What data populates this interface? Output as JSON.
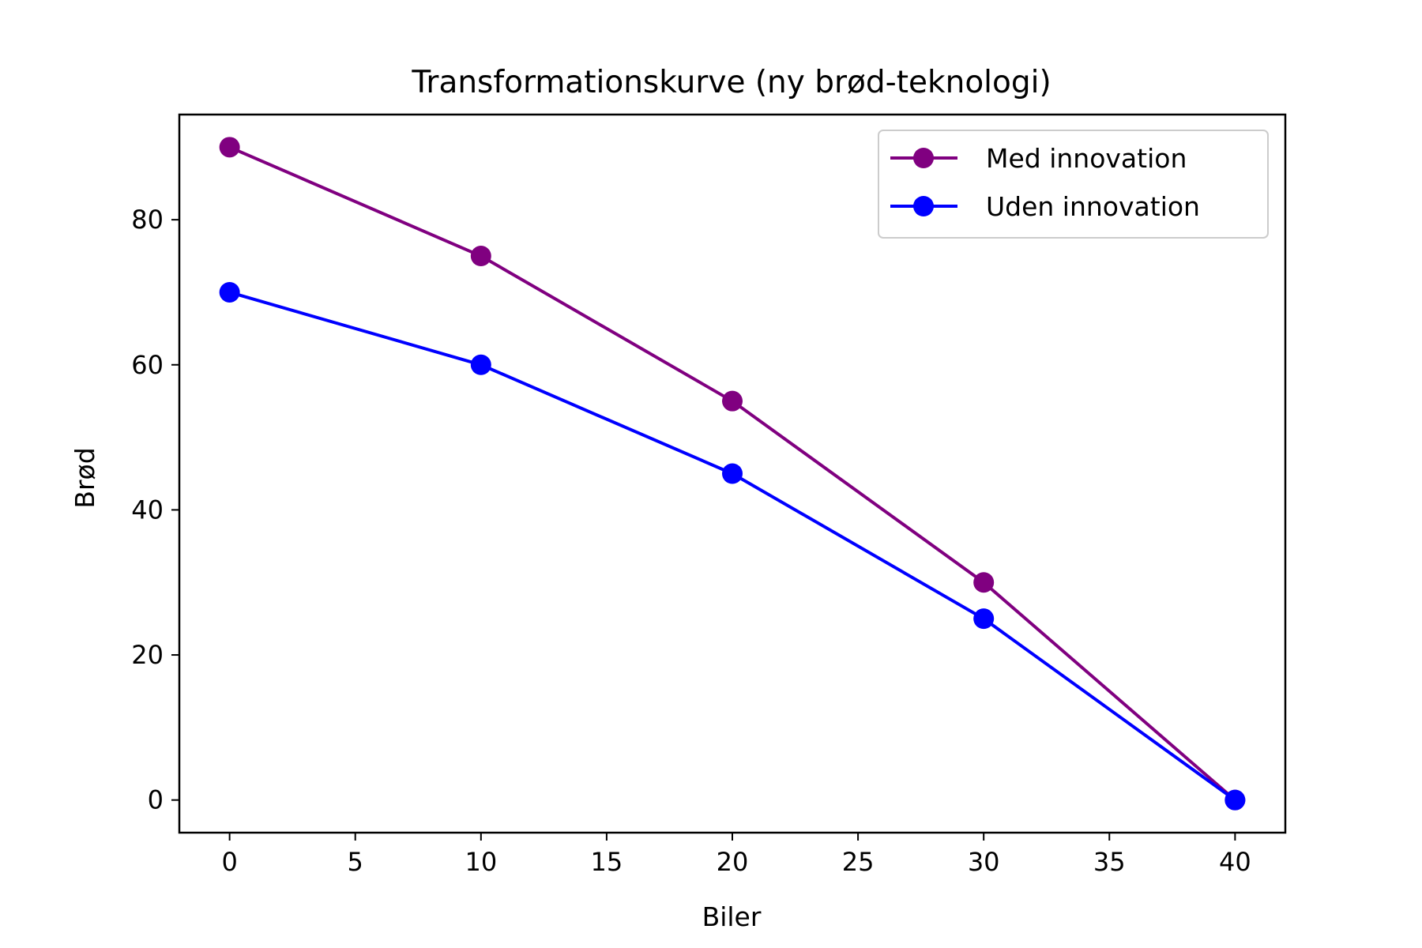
{
  "chart_data": {
    "type": "line",
    "title": "Transformationskurve (ny brød-teknologi)",
    "xlabel": "Biler",
    "ylabel": "Brød",
    "xlim": [
      -2,
      42
    ],
    "ylim": [
      -4.5,
      94.5
    ],
    "xticks": [
      0,
      5,
      10,
      15,
      20,
      25,
      30,
      35,
      40
    ],
    "yticks": [
      0,
      20,
      40,
      60,
      80
    ],
    "grid": false,
    "legend_position": "top-right",
    "series": [
      {
        "name": "Med innovation",
        "color": "#800080",
        "x": [
          0,
          10,
          20,
          30,
          40
        ],
        "y": [
          90,
          75,
          55,
          30,
          0
        ]
      },
      {
        "name": "Uden innovation",
        "color": "#0000ff",
        "x": [
          0,
          10,
          20,
          30,
          40
        ],
        "y": [
          70,
          60,
          45,
          25,
          0
        ]
      }
    ]
  }
}
